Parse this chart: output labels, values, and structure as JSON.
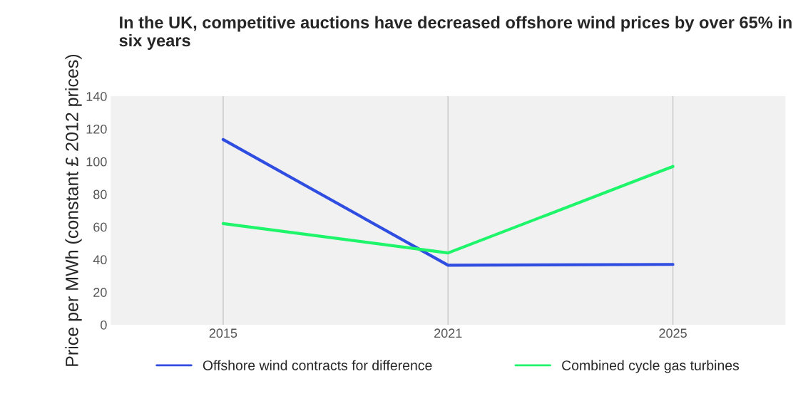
{
  "chart_data": {
    "type": "line",
    "title": "In the UK, competitive auctions have decreased offshore wind prices by over 65% in six years",
    "ylabel": "Price per MWh (constant £ 2012 prices)",
    "categories": [
      "2015",
      "2021",
      "2025"
    ],
    "series": [
      {
        "name": "Offshore wind contracts for difference",
        "color": "#2f4de0",
        "values": [
          113.5,
          36.5,
          37
        ]
      },
      {
        "name": "Combined cycle gas turbines",
        "color": "#1ef56a",
        "values": [
          62,
          44,
          97
        ]
      }
    ],
    "ylim": [
      0,
      140
    ],
    "yticks": [
      0,
      20,
      40,
      60,
      80,
      100,
      120,
      140
    ],
    "grid": "x",
    "legend": "bottom",
    "marker": "none",
    "line_style": "solid"
  }
}
